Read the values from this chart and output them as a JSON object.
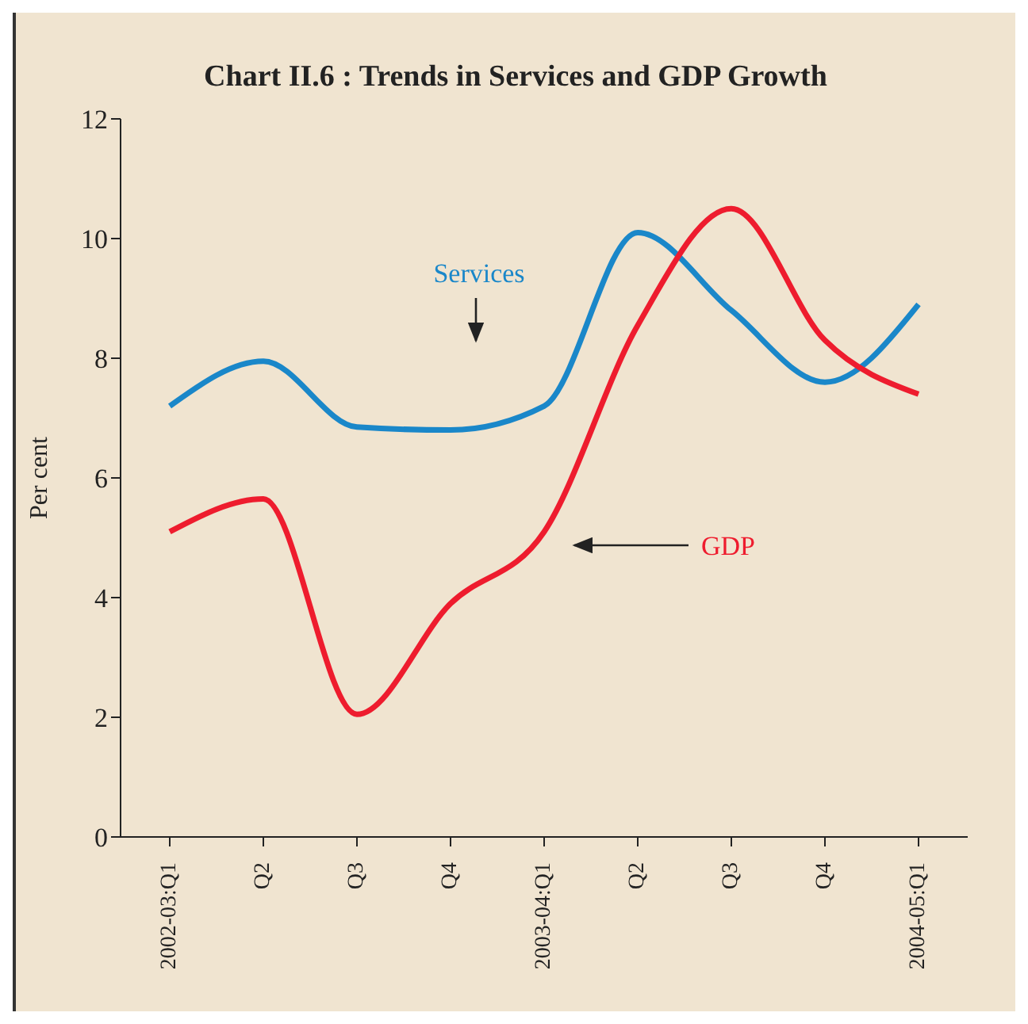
{
  "chart_data": {
    "type": "line",
    "title": "Chart II.6 : Trends in Services and GDP Growth",
    "ylabel": "Per cent",
    "categories": [
      "2002-03:Q1",
      "Q2",
      "Q3",
      "Q4",
      "2003-04:Q1",
      "Q2",
      "Q3",
      "Q4",
      "2004-05:Q1"
    ],
    "series": [
      {
        "name": "Services",
        "color": "#1a87c9",
        "values": [
          7.2,
          7.95,
          6.85,
          6.8,
          7.2,
          10.1,
          8.8,
          7.6,
          8.9
        ]
      },
      {
        "name": "GDP",
        "color": "#ee1c2e",
        "values": [
          5.1,
          5.65,
          2.05,
          3.9,
          5.1,
          8.55,
          10.5,
          8.3,
          7.4
        ]
      }
    ],
    "ylim": [
      0,
      12
    ],
    "yticks": [
      0,
      2,
      4,
      6,
      8,
      10,
      12
    ],
    "marker": "none",
    "line_style": "solid"
  }
}
